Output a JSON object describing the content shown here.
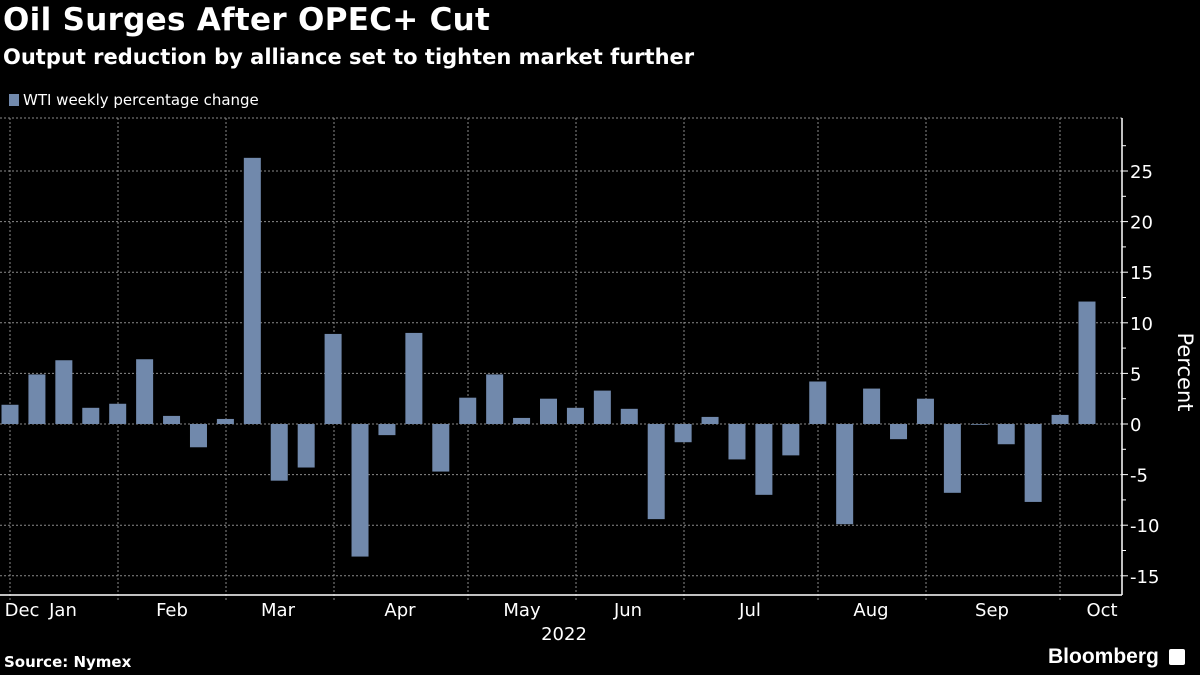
{
  "header": {
    "title": "Oil Surges After OPEC+ Cut",
    "subtitle": "Output reduction by alliance set to tighten market further"
  },
  "footer": {
    "source": "Source: Nymex",
    "brand": "Bloomberg"
  },
  "colors": {
    "bar": "#7189ac",
    "background": "#000000",
    "grid": "#8a8a8a"
  },
  "chart_data": {
    "type": "bar",
    "title": "Oil Surges After OPEC+ Cut",
    "subtitle": "Output reduction by alliance set to tighten market further",
    "series": [
      {
        "name": "WTI weekly percentage change",
        "values": [
          1.9,
          4.9,
          6.3,
          1.6,
          2.0,
          6.4,
          0.8,
          -2.3,
          0.5,
          26.3,
          -5.6,
          -4.3,
          8.9,
          -13.1,
          -1.1,
          9.0,
          -4.7,
          2.6,
          4.9,
          0.6,
          2.5,
          1.6,
          3.3,
          1.5,
          -9.4,
          -1.8,
          0.7,
          -3.5,
          -7.0,
          -3.1,
          4.2,
          -9.9,
          3.5,
          -1.5,
          2.5,
          -6.8,
          -0.05,
          -2.0,
          -7.7,
          0.9,
          12.1
        ]
      }
    ],
    "x_month_labels": [
      "Dec",
      "Jan",
      "Feb",
      "Mar",
      "Apr",
      "May",
      "Jun",
      "Jul",
      "Aug",
      "Sep",
      "Oct"
    ],
    "x_year_label": "2022",
    "ylabel": "Percent",
    "yticks": [
      25,
      20,
      15,
      10,
      5,
      0,
      -5,
      -10,
      -15
    ],
    "ylim": [
      -16.7,
      30
    ],
    "grid": true,
    "y_axis_side": "right",
    "legend_placement": "top-left"
  }
}
